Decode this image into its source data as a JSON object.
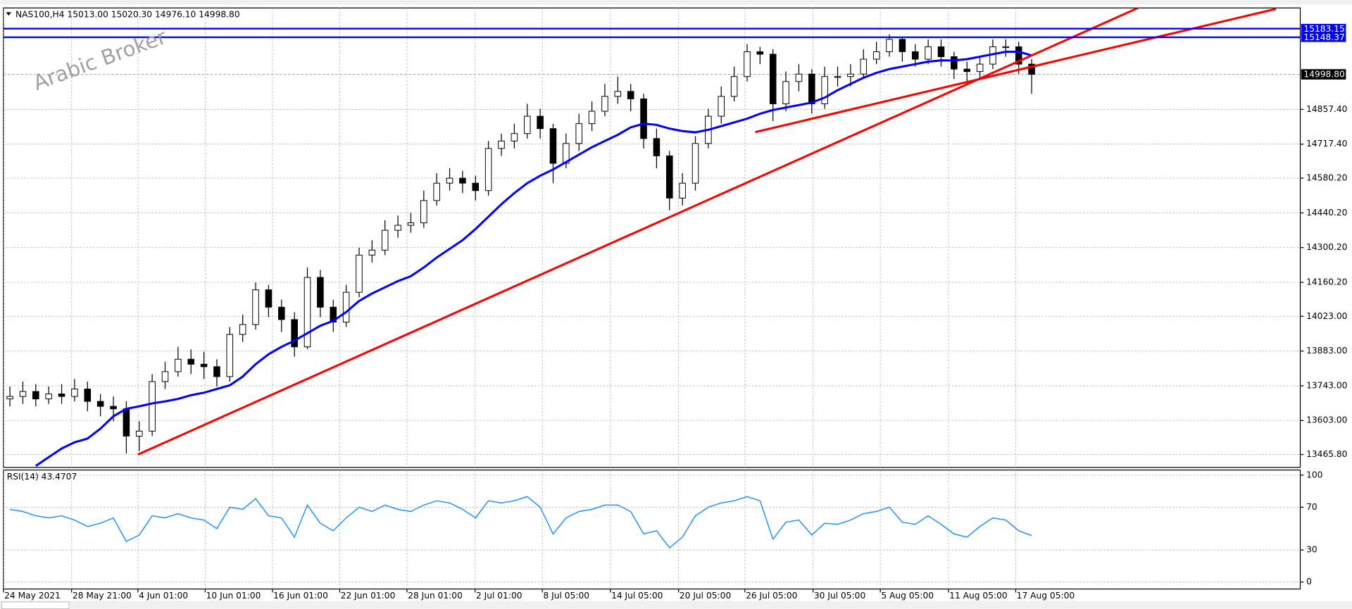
{
  "chart_data": [
    {
      "type": "candlestick",
      "title": "NAS100,H4  15013.00 15020.30 14976.10 14998.80",
      "watermark": "Arabic Broker",
      "grid": true,
      "xlim": [
        -0.5,
        99.77
      ],
      "xticks": [
        {
          "value": -0.5,
          "label": "24 May 2021"
        },
        {
          "value": 4.77,
          "label": "28 May 21:00"
        },
        {
          "value": 9.9,
          "label": "4 Jun 01:00"
        },
        {
          "value": 15.1,
          "label": "10 Jun 01:00"
        },
        {
          "value": 20.3,
          "label": "16 Jun 01:00"
        },
        {
          "value": 25.5,
          "label": "22 Jun 01:00"
        },
        {
          "value": 30.7,
          "label": "28 Jun 01:00"
        },
        {
          "value": 35.97,
          "label": "2 Jul 01:00"
        },
        {
          "value": 41.17,
          "label": "8 Jul 05:00"
        },
        {
          "value": 46.43,
          "label": "14 Jul 05:00"
        },
        {
          "value": 51.7,
          "label": "20 Jul 05:00"
        },
        {
          "value": 56.83,
          "label": "26 Jul 05:00"
        },
        {
          "value": 62.1,
          "label": "30 Jul 05:00"
        },
        {
          "value": 67.3,
          "label": "5 Aug 05:00"
        },
        {
          "value": 72.57,
          "label": "11 Aug 05:00"
        },
        {
          "value": 77.77,
          "label": "17 Aug 05:00"
        }
      ],
      "ylim": [
        13413.7,
        15266.6
      ],
      "yticks": [
        {
          "value": 13465.8,
          "label": "13465.80"
        },
        {
          "value": 13603,
          "label": "13603.00"
        },
        {
          "value": 13743,
          "label": "13743.00"
        },
        {
          "value": 13883,
          "label": "13883.00"
        },
        {
          "value": 14023,
          "label": "14023.00"
        },
        {
          "value": 14160.2,
          "label": "14160.20"
        },
        {
          "value": 14300.2,
          "label": "14300.20"
        },
        {
          "value": 14440.2,
          "label": "14440.20"
        },
        {
          "value": 14580.2,
          "label": "14580.20"
        },
        {
          "value": 14717.4,
          "label": "14717.40"
        },
        {
          "value": 14857.4,
          "label": "14857.40"
        }
      ],
      "up_color": "#ffffff",
      "down_color": "#000000",
      "open": [
        13690,
        13700,
        13720,
        13690,
        13710,
        13700,
        13730,
        13680,
        13660,
        13650,
        13540,
        13560,
        13760,
        13800,
        13850,
        13830,
        13820,
        13780,
        13950,
        13990,
        14130,
        14060,
        14010,
        13900,
        14180,
        14060,
        14000,
        14120,
        14270,
        14290,
        14370,
        14390,
        14400,
        14490,
        14560,
        14580,
        14560,
        14530,
        14700,
        14730,
        14760,
        14830,
        14780,
        14640,
        14720,
        14800,
        14850,
        14910,
        14930,
        14900,
        14740,
        14670,
        14500,
        14560,
        14720,
        14830,
        14910,
        14990,
        15090,
        15080,
        14880,
        14970,
        15000,
        14880,
        14990,
        14990,
        15000,
        15060,
        15090,
        15140,
        15090,
        15060,
        15110,
        15070,
        15020,
        15010,
        15040,
        15110,
        15110,
        15040
      ],
      "high": [
        13740,
        13760,
        13750,
        13740,
        13750,
        13770,
        13760,
        13710,
        13700,
        13680,
        13600,
        13790,
        13840,
        13900,
        13890,
        13880,
        13850,
        13980,
        14030,
        14160,
        14150,
        14090,
        14040,
        14220,
        14210,
        14090,
        14150,
        14300,
        14330,
        14410,
        14430,
        14440,
        14530,
        14600,
        14620,
        14610,
        14590,
        14730,
        14760,
        14800,
        14880,
        14860,
        14800,
        14760,
        14840,
        14890,
        14960,
        14990,
        14960,
        14920,
        14780,
        14690,
        14600,
        14750,
        14860,
        14950,
        15030,
        15120,
        15110,
        15100,
        15010,
        15040,
        15020,
        15030,
        15030,
        15040,
        15100,
        15130,
        15160,
        15150,
        15120,
        15140,
        15140,
        15090,
        15050,
        15070,
        15140,
        15140,
        15130,
        15060
      ],
      "low": [
        13660,
        13670,
        13660,
        13670,
        13670,
        13680,
        13640,
        13620,
        13600,
        13470,
        13480,
        13540,
        13730,
        13780,
        13790,
        13770,
        13740,
        13760,
        13920,
        13970,
        14020,
        13960,
        13860,
        13890,
        14020,
        13960,
        13980,
        14100,
        14240,
        14270,
        14340,
        14360,
        14380,
        14470,
        14530,
        14520,
        14490,
        14510,
        14670,
        14700,
        14740,
        14740,
        14560,
        14620,
        14690,
        14770,
        14830,
        14880,
        14850,
        14700,
        14620,
        14450,
        14470,
        14530,
        14700,
        14800,
        14890,
        14970,
        15040,
        14810,
        14850,
        14930,
        14840,
        14860,
        14950,
        14950,
        14980,
        15040,
        15070,
        15050,
        15030,
        15040,
        15030,
        14980,
        14970,
        14980,
        15020,
        15070,
        15000,
        14920
      ],
      "close": [
        13700,
        13720,
        13690,
        13710,
        13700,
        13730,
        13680,
        13660,
        13650,
        13540,
        13560,
        13760,
        13800,
        13850,
        13830,
        13820,
        13780,
        13950,
        13990,
        14130,
        14060,
        14010,
        13900,
        14180,
        14060,
        14000,
        14120,
        14270,
        14290,
        14370,
        14390,
        14400,
        14490,
        14560,
        14580,
        14560,
        14530,
        14700,
        14730,
        14760,
        14830,
        14780,
        14640,
        14720,
        14800,
        14850,
        14910,
        14930,
        14900,
        14740,
        14670,
        14500,
        14560,
        14720,
        14830,
        14910,
        14990,
        15090,
        15080,
        14880,
        14970,
        15000,
        14880,
        14990,
        14990,
        15000,
        15060,
        15090,
        15140,
        15090,
        15060,
        15110,
        15070,
        15020,
        15010,
        15040,
        15110,
        15110,
        15040,
        14998.8
      ],
      "ma": {
        "color": "#0000ff",
        "values": [
          null,
          null,
          13420,
          13455,
          13490,
          13515,
          13530,
          13570,
          13620,
          13650,
          13660,
          13672,
          13680,
          13690,
          13705,
          13715,
          13730,
          13745,
          13780,
          13830,
          13870,
          13900,
          13925,
          13955,
          13985,
          14005,
          14040,
          14085,
          14115,
          14140,
          14165,
          14185,
          14220,
          14260,
          14295,
          14330,
          14375,
          14425,
          14475,
          14520,
          14560,
          14590,
          14615,
          14645,
          14675,
          14705,
          14730,
          14755,
          14785,
          14800,
          14795,
          14780,
          14770,
          14765,
          14775,
          14790,
          14805,
          14820,
          14840,
          14855,
          14865,
          14875,
          14885,
          14905,
          14935,
          14960,
          14985,
          15005,
          15020,
          15030,
          15040,
          15050,
          15055,
          15055,
          15060,
          15070,
          15080,
          15090,
          15090,
          15075
        ]
      },
      "trendlines": [
        {
          "color": "#ff0000",
          "x": [
            9.9,
            87.23
          ],
          "y": [
            13465.8,
            15266.6
          ]
        },
        {
          "color": "#ff0000",
          "x": [
            57.63,
            97.9
          ],
          "y": [
            14765.8,
            15262.8
          ]
        }
      ],
      "hlines": {
        "color": "#0000ff",
        "values": [
          15183.15,
          15148.37
        ]
      },
      "last": {
        "value": 14998.8,
        "label": "14998.80"
      }
    },
    {
      "type": "line",
      "title": "RSI(14) 43.4707",
      "grid": true,
      "ylim": [
        -6.5,
        104.8
      ],
      "yticks": [
        100,
        70,
        30,
        0
      ],
      "series": [
        {
          "color": "#1e90ff",
          "values": [
            68,
            66,
            62,
            60,
            62,
            58,
            52,
            55,
            60,
            38,
            44,
            62,
            60,
            64,
            60,
            58,
            50,
            70,
            68,
            78,
            62,
            60,
            42,
            72,
            55,
            48,
            60,
            70,
            66,
            72,
            68,
            66,
            72,
            76,
            74,
            68,
            60,
            76,
            74,
            76,
            80,
            70,
            45,
            60,
            66,
            68,
            72,
            72,
            66,
            45,
            48,
            32,
            42,
            62,
            70,
            74,
            76,
            80,
            76,
            40,
            56,
            58,
            44,
            55,
            54,
            58,
            64,
            66,
            70,
            56,
            54,
            62,
            54,
            45,
            42,
            52,
            60,
            58,
            48,
            43.4707
          ]
        }
      ]
    }
  ]
}
